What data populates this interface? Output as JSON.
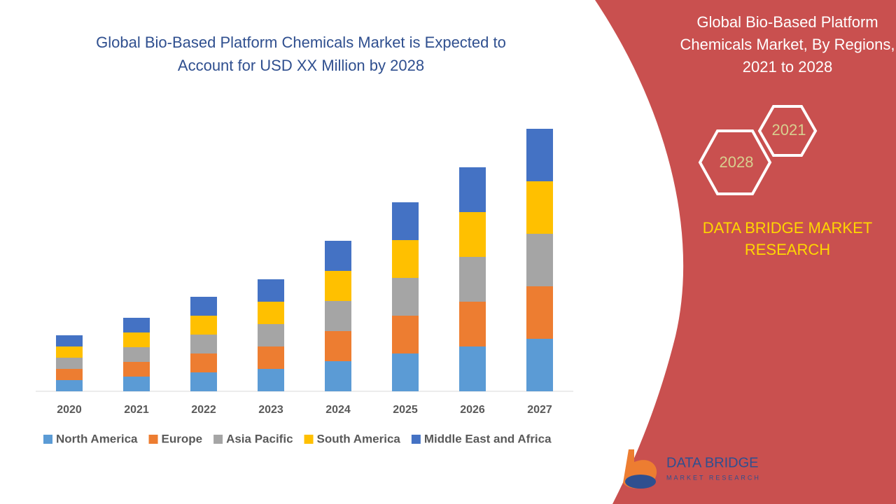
{
  "chart_data": {
    "type": "stacked_bar",
    "title": "Global Bio-Based Platform Chemicals Market is Expected to Account for USD XX Million by 2028",
    "categories": [
      "2020",
      "2021",
      "2022",
      "2023",
      "2024",
      "2025",
      "2026",
      "2027"
    ],
    "series": [
      {
        "name": "North America",
        "color": "#5b9bd5",
        "values": [
          16,
          21,
          27,
          32,
          43,
          54,
          64,
          75
        ]
      },
      {
        "name": "Europe",
        "color": "#ed7d31",
        "values": [
          16,
          21,
          27,
          32,
          43,
          54,
          64,
          75
        ]
      },
      {
        "name": "Asia Pacific",
        "color": "#a5a5a5",
        "values": [
          16,
          21,
          27,
          32,
          43,
          54,
          64,
          75
        ]
      },
      {
        "name": "South America",
        "color": "#ffc000",
        "values": [
          16,
          21,
          27,
          32,
          43,
          54,
          64,
          75
        ]
      },
      {
        "name": "Middle East and Africa",
        "color": "#4472c4",
        "values": [
          16,
          21,
          27,
          32,
          43,
          54,
          64,
          75
        ]
      }
    ],
    "ylim": [
      0,
      375
    ],
    "grid": false,
    "legend": "bottom"
  },
  "side_panel": {
    "title": "Global Bio-Based Platform Chemicals Market, By Regions, 2021 to 2028",
    "badges": [
      "2021",
      "2028"
    ],
    "brand": "DATA BRIDGE MARKET RESEARCH"
  },
  "logo": {
    "name": "DATA BRIDGE",
    "tagline": "MARKET RESEARCH"
  }
}
